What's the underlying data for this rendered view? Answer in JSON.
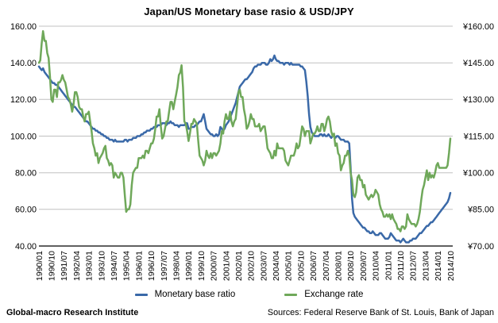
{
  "chart_data": {
    "type": "line",
    "title": "Japan/US Monetary base rasio & USD/JPY",
    "frequency": "monthly",
    "x_start": "1990/01",
    "x_end": "2014/10",
    "x_tick_step_months": 9,
    "x_tick_labels": [
      "1990/01",
      "1990/10",
      "1991/07",
      "1992/04",
      "1993/01",
      "1993/10",
      "1994/07",
      "1995/04",
      "1996/01",
      "1996/10",
      "1997/07",
      "1998/04",
      "1999/01",
      "1999/10",
      "2000/07",
      "2001/04",
      "2002/01",
      "2002/10",
      "2003/07",
      "2004/04",
      "2005/01",
      "2005/10",
      "2006/07",
      "2007/04",
      "2008/01",
      "2008/10",
      "2009/07",
      "2010/04",
      "2011/01",
      "2011/10",
      "2012/07",
      "2013/04",
      "2014/01",
      "2014/10"
    ],
    "x_label_rotation": -90,
    "grid": true,
    "gridline_color": "#c0c0c0",
    "axis_line_color": "#000000",
    "legend_position": "bottom",
    "y_axis_left": {
      "min": 40,
      "max": 160,
      "ticks": [
        "160.00",
        "140.00",
        "120.00",
        "100.00",
        "80.00",
        "60.00",
        "40.00"
      ]
    },
    "y_axis_right": {
      "min": 70,
      "max": 160,
      "ticks": [
        "¥160.00",
        "¥145.00",
        "¥130.00",
        "¥115.00",
        "¥100.00",
        "¥85.00",
        "¥70.00"
      ]
    },
    "series": [
      {
        "name": "Monetary base ratio",
        "axis": "left",
        "color": "#3a69a8",
        "values": [
          138,
          137,
          136,
          137,
          135,
          134,
          133,
          132,
          131,
          130,
          129,
          129,
          128,
          128,
          127,
          126,
          125,
          124,
          123,
          122,
          121,
          120,
          119,
          118,
          117,
          116,
          116,
          115,
          114,
          113,
          112,
          111,
          110,
          109,
          108,
          108,
          107,
          106,
          105,
          104,
          104,
          103,
          103,
          102,
          102,
          101,
          101,
          100,
          100,
          99,
          99,
          98,
          98,
          98,
          97,
          98,
          97,
          97,
          97,
          97,
          97,
          97,
          98,
          98,
          97,
          98,
          98,
          98,
          99,
          99,
          99,
          100,
          100,
          100,
          101,
          101,
          102,
          102,
          103,
          103,
          103,
          104,
          104,
          105,
          105,
          105,
          106,
          106,
          106,
          107,
          107,
          107,
          106,
          107,
          107,
          108,
          107,
          107,
          106,
          106,
          106,
          105,
          106,
          106,
          106,
          106,
          107,
          107,
          104,
          104,
          105,
          105,
          105,
          106,
          106,
          107,
          108,
          108,
          110,
          112,
          108,
          104,
          103,
          102,
          101,
          101,
          100,
          100,
          101,
          100,
          101,
          105,
          104,
          103,
          104,
          106,
          107,
          108,
          110,
          112,
          114,
          116,
          118,
          121,
          124,
          127,
          128,
          129,
          130,
          131,
          131,
          132,
          133,
          134,
          135,
          137,
          138,
          138,
          139,
          139,
          139,
          140,
          140,
          140,
          139,
          139,
          140,
          142,
          141,
          142,
          144,
          142,
          141,
          141,
          140,
          140,
          140,
          139,
          140,
          140,
          140,
          139,
          140,
          139,
          139,
          139,
          139,
          139,
          139,
          138,
          138,
          137,
          136,
          130,
          122,
          112,
          105,
          102,
          101,
          100,
          100,
          100,
          100,
          101,
          101,
          100,
          101,
          100,
          100,
          101,
          100,
          99,
          100,
          100,
          99,
          100,
          100,
          99,
          98,
          98,
          98,
          97,
          97,
          97,
          96,
          83,
          66,
          58,
          56,
          55,
          54,
          53,
          52,
          51,
          50,
          50,
          49,
          48,
          48,
          47,
          47,
          48,
          47,
          46,
          46,
          46,
          47,
          47,
          46,
          45,
          44,
          44,
          44,
          45,
          47,
          46,
          45,
          44,
          43,
          43,
          43,
          42,
          43,
          44,
          43,
          42,
          42,
          42,
          43,
          43,
          44,
          44,
          44,
          45,
          46,
          47,
          47,
          48,
          49,
          50,
          51,
          51,
          52,
          53,
          53,
          54,
          55,
          56,
          57,
          58,
          59,
          60,
          61,
          62,
          63,
          64,
          66,
          69
        ]
      },
      {
        "name": "Exchange rate",
        "axis": "right",
        "color": "#6fa85a",
        "values": [
          145,
          146,
          153,
          158,
          154,
          154,
          149,
          147,
          139,
          130,
          129,
          134,
          134,
          131,
          137,
          137,
          138,
          140,
          138,
          137,
          134,
          131,
          130,
          128,
          125,
          128,
          133,
          133,
          131,
          127,
          126,
          126,
          123,
          121,
          124,
          124,
          125,
          121,
          117,
          112,
          110,
          107,
          108,
          104,
          106,
          107,
          108,
          110,
          111,
          106,
          105,
          103,
          104,
          103,
          98,
          100,
          99,
          98,
          98,
          100,
          100,
          98,
          91,
          84,
          85,
          85,
          87,
          95,
          100,
          101,
          102,
          102,
          106,
          106,
          106,
          107,
          106,
          109,
          109,
          108,
          110,
          112,
          112,
          114,
          118,
          123,
          123,
          126,
          119,
          114,
          115,
          118,
          121,
          121,
          125,
          129,
          129,
          126,
          129,
          132,
          135,
          140,
          141,
          144,
          135,
          121,
          120,
          117,
          113,
          116,
          120,
          120,
          122,
          121,
          120,
          113,
          107,
          106,
          105,
          103,
          105,
          109,
          107,
          106,
          108,
          106,
          108,
          108,
          107,
          108,
          109,
          112,
          117,
          116,
          121,
          124,
          122,
          122,
          125,
          121,
          119,
          121,
          122,
          127,
          133,
          134,
          131,
          131,
          126,
          123,
          118,
          119,
          121,
          124,
          122,
          122,
          119,
          119,
          119,
          120,
          117,
          118,
          119,
          119,
          115,
          110,
          109,
          108,
          106,
          106,
          109,
          107,
          112,
          110,
          110,
          110,
          110,
          109,
          105,
          104,
          103,
          105,
          107,
          107,
          107,
          109,
          112,
          110,
          111,
          115,
          119,
          118,
          115,
          117,
          117,
          117,
          112,
          114,
          116,
          116,
          117,
          119,
          117,
          117,
          120,
          120,
          117,
          119,
          122,
          123,
          121,
          117,
          115,
          116,
          111,
          112,
          108,
          107,
          101,
          103,
          104,
          107,
          107,
          109,
          107,
          100,
          97,
          91,
          90,
          92,
          98,
          99,
          97,
          97,
          94,
          95,
          91,
          90,
          89,
          90,
          91,
          90,
          91,
          93,
          92,
          91,
          87,
          85,
          84,
          82,
          82,
          83,
          82,
          83,
          81,
          83,
          81,
          80,
          79,
          77,
          77,
          76,
          78,
          78,
          77,
          78,
          83,
          81,
          80,
          79,
          79,
          79,
          78,
          79,
          81,
          84,
          89,
          93,
          95,
          98,
          101,
          97,
          100,
          98,
          99,
          98,
          100,
          103,
          104,
          102,
          102,
          102,
          102,
          102,
          102,
          103,
          108,
          114
        ]
      }
    ]
  },
  "footer": {
    "left": "Global-macro Research Institute",
    "right": "Sources: Federal Reserve Bank of St. Louis, Bank of Japan"
  }
}
